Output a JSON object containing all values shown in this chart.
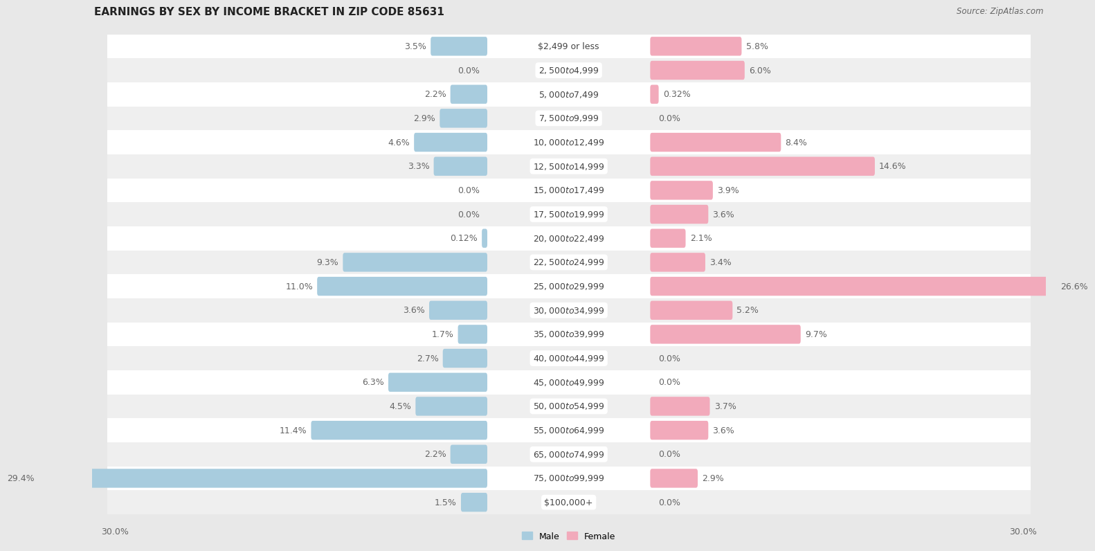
{
  "title": "EARNINGS BY SEX BY INCOME BRACKET IN ZIP CODE 85631",
  "source": "Source: ZipAtlas.com",
  "categories": [
    "$2,499 or less",
    "$2,500 to $4,999",
    "$5,000 to $7,499",
    "$7,500 to $9,999",
    "$10,000 to $12,499",
    "$12,500 to $14,999",
    "$15,000 to $17,499",
    "$17,500 to $19,999",
    "$20,000 to $22,499",
    "$22,500 to $24,999",
    "$25,000 to $29,999",
    "$30,000 to $34,999",
    "$35,000 to $39,999",
    "$40,000 to $44,999",
    "$45,000 to $49,999",
    "$50,000 to $54,999",
    "$55,000 to $64,999",
    "$65,000 to $74,999",
    "$75,000 to $99,999",
    "$100,000+"
  ],
  "male": [
    3.5,
    0.0,
    2.2,
    2.9,
    4.6,
    3.3,
    0.0,
    0.0,
    0.12,
    9.3,
    11.0,
    3.6,
    1.7,
    2.7,
    6.3,
    4.5,
    11.4,
    2.2,
    29.4,
    1.5
  ],
  "female": [
    5.8,
    6.0,
    0.32,
    0.0,
    8.4,
    14.6,
    3.9,
    3.6,
    2.1,
    3.4,
    26.6,
    5.2,
    9.7,
    0.0,
    0.0,
    3.7,
    3.6,
    0.0,
    2.9,
    0.0
  ],
  "male_color": "#a8ccde",
  "female_color": "#f2aabb",
  "xlim": 30.0,
  "bg_color": "#e8e8e8",
  "row_even_color": "#ffffff",
  "row_odd_color": "#efefef",
  "label_color": "#666666",
  "title_fontsize": 11,
  "source_fontsize": 8.5,
  "bar_label_fontsize": 9,
  "category_fontsize": 9,
  "legend_fontsize": 9,
  "axis_tick_fontsize": 9
}
